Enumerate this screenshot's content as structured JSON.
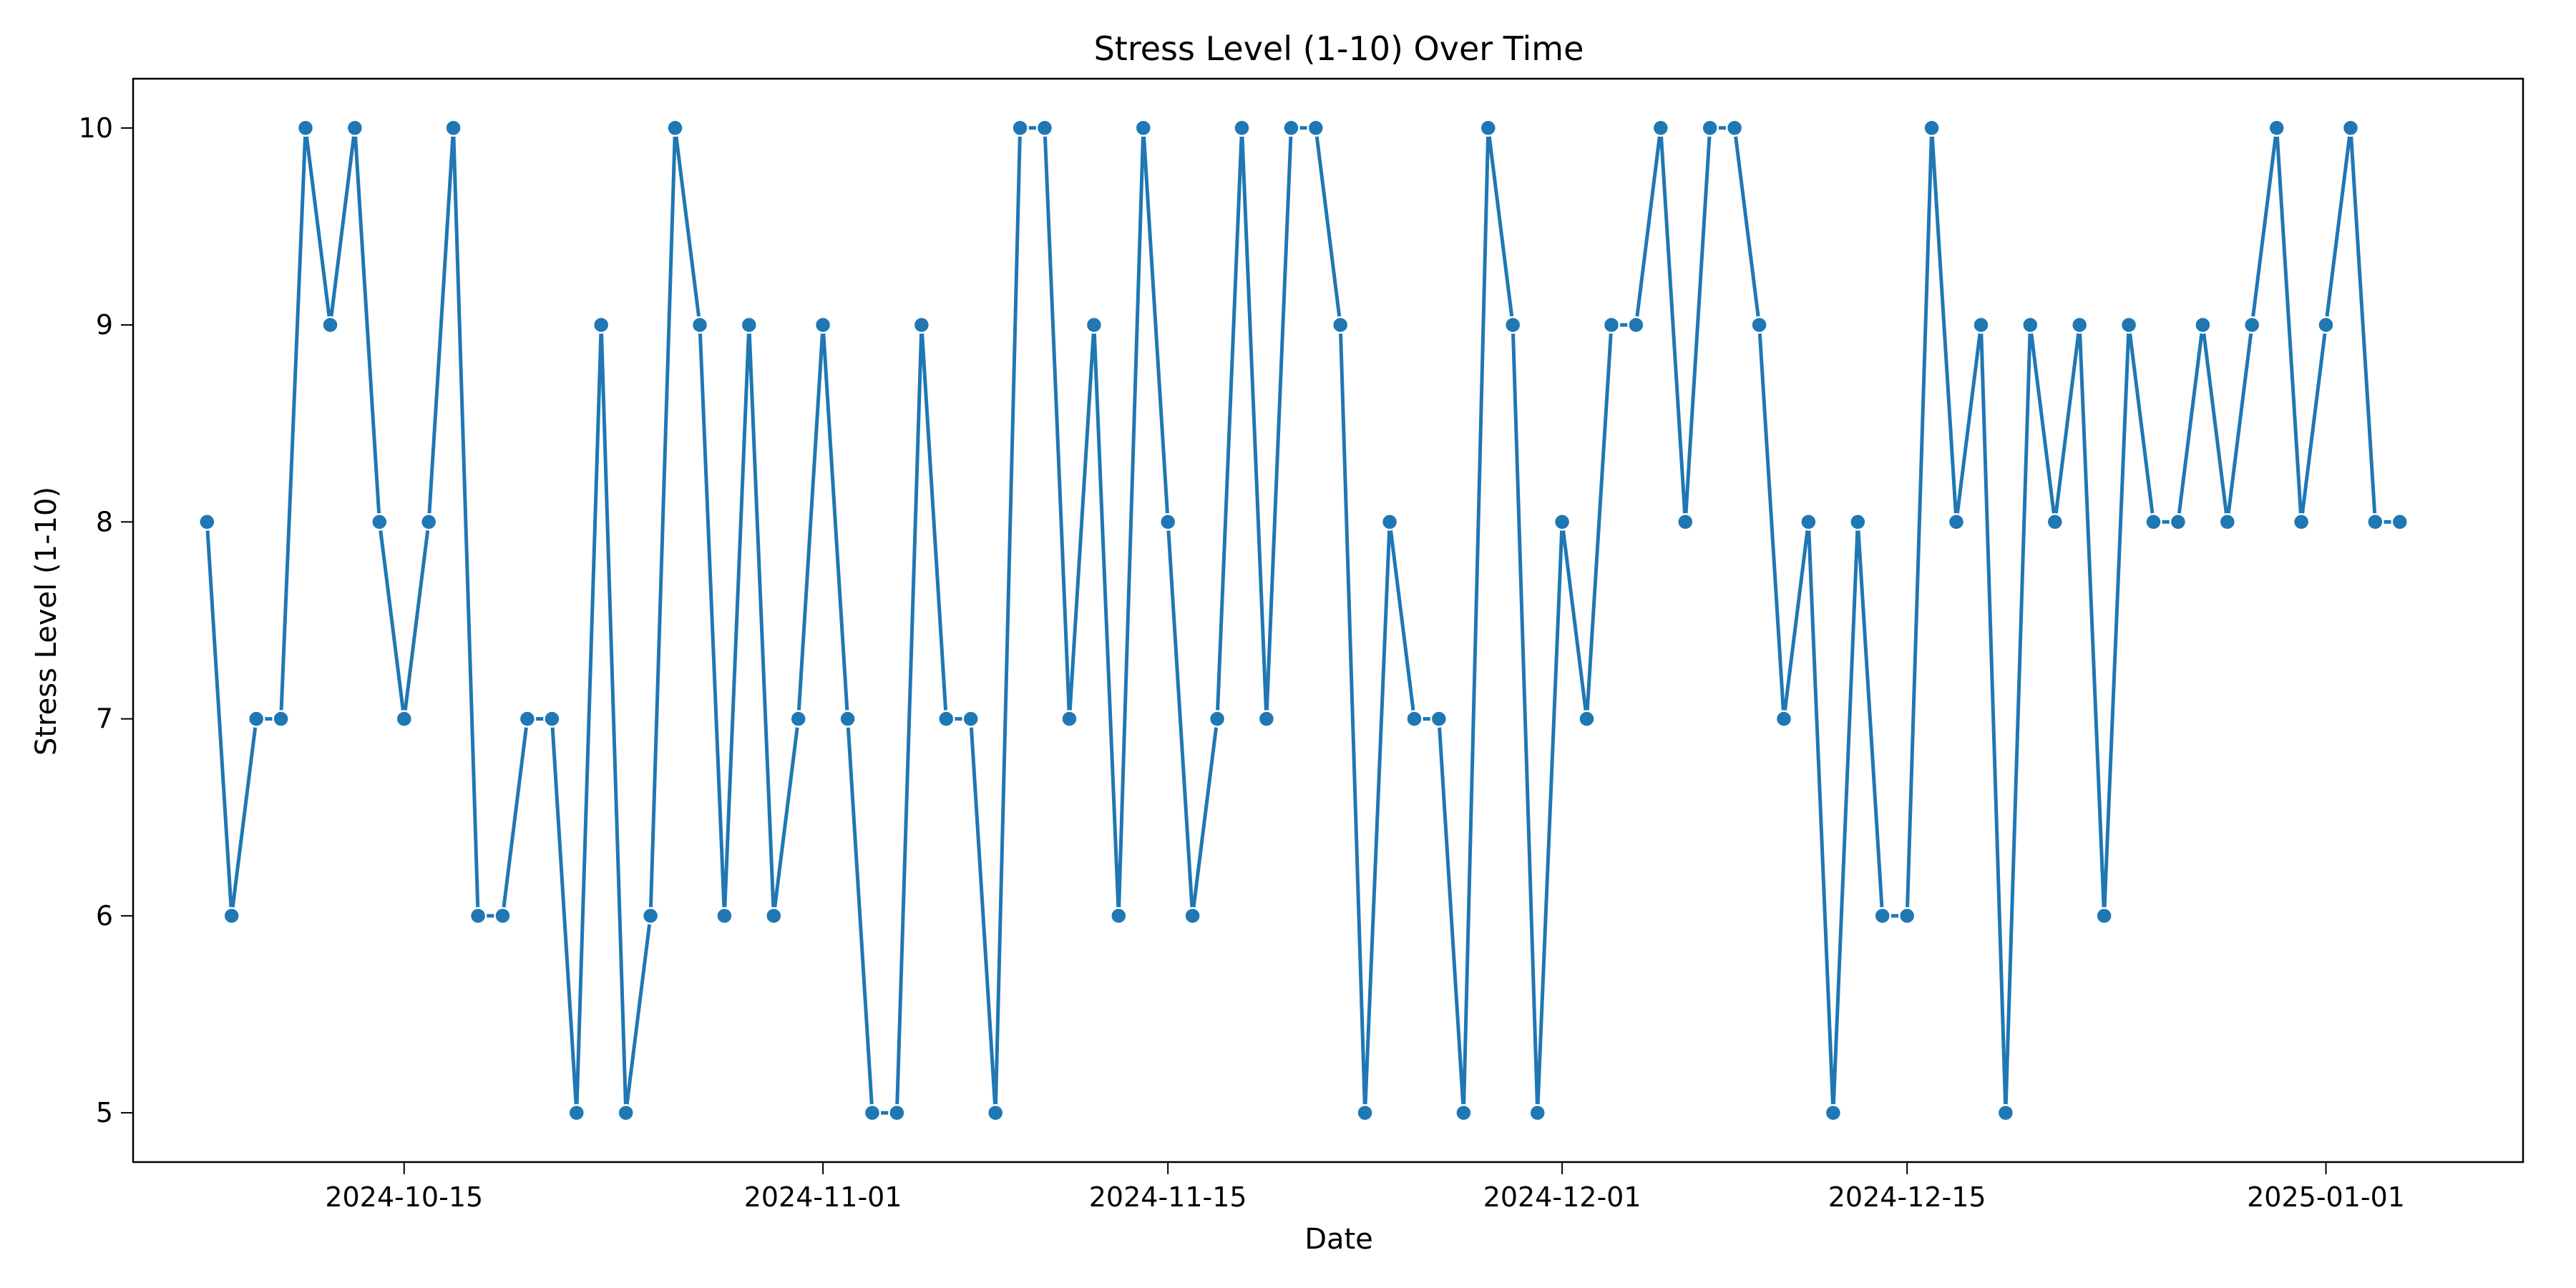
{
  "chart_data": {
    "type": "line",
    "title": "Stress Level (1-10) Over Time",
    "xlabel": "Date",
    "ylabel": "Stress Level (1-10)",
    "x_start": "2024-10-07",
    "x_step_days": 1,
    "xlim": [
      "2024-10-04",
      "2025-01-09"
    ],
    "ylim": [
      4.75,
      10.25
    ],
    "y_ticks": [
      5,
      6,
      7,
      8,
      9,
      10
    ],
    "x_ticks": [
      "2024-10-15",
      "2024-11-01",
      "2024-11-15",
      "2024-12-01",
      "2024-12-15",
      "2025-01-01"
    ],
    "grid": false,
    "legend": "none",
    "series": [
      {
        "color": "#1f77b4",
        "marker": "circle",
        "values": [
          8,
          6,
          7,
          7,
          10,
          9,
          10,
          8,
          7,
          8,
          10,
          6,
          6,
          7,
          7,
          5,
          9,
          5,
          6,
          10,
          9,
          6,
          9,
          6,
          7,
          9,
          7,
          5,
          5,
          9,
          7,
          7,
          5,
          10,
          10,
          7,
          9,
          6,
          10,
          8,
          6,
          7,
          10,
          7,
          10,
          10,
          9,
          5,
          8,
          7,
          7,
          5,
          10,
          9,
          5,
          8,
          7,
          9,
          9,
          10,
          8,
          10,
          10,
          9,
          7,
          8,
          5,
          8,
          6,
          6,
          10,
          8,
          9,
          5,
          9,
          8,
          9,
          6,
          9,
          8,
          8,
          9,
          8,
          9,
          10,
          8,
          9,
          10,
          8,
          8
        ]
      }
    ]
  }
}
